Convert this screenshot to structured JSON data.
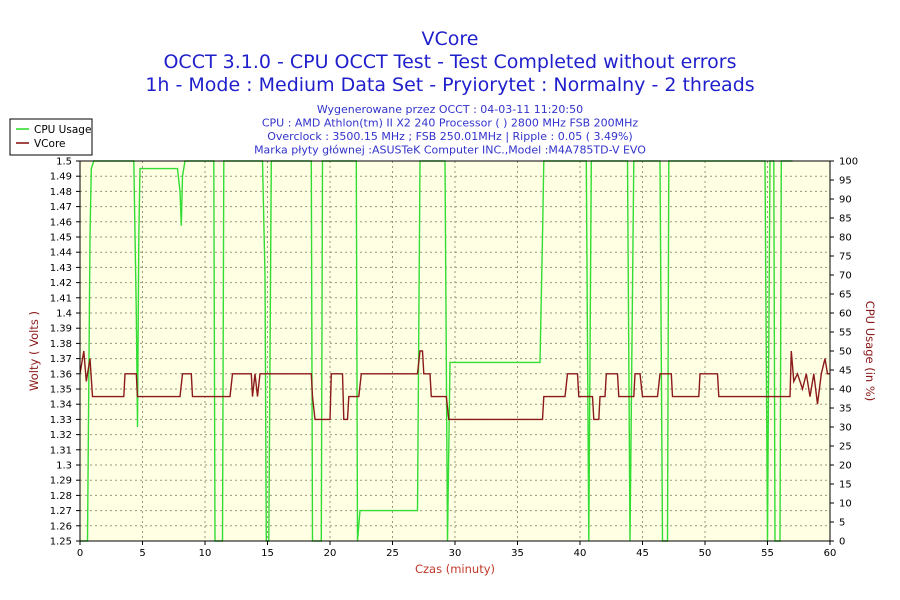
{
  "chart_data": {
    "type": "line",
    "title_lines": [
      "VCore",
      "OCCT 3.1.0 - CPU OCCT Test - Test Completed without errors",
      "1h - Mode : Medium Data Set - Pryiorytet : Normalny - 2 threads"
    ],
    "info_lines": [
      "Wygenerowane przez OCCT : 04-03-11 11:20:50",
      "CPU : AMD Athlon(tm) II X2 240 Processor (  ) 2800 MHz FSB 200MHz",
      "Overclock : 3500.15 MHz ; FSB 250.01MHz | Ripple : 0.05 ( 3.49%)",
      "Marka płyty głównej :ASUSTeK Computer INC.,Model :M4A785TD-V EVO"
    ],
    "xlabel": "Czas (minuty)",
    "ylabel_left": "Wolty ( Volts )",
    "ylabel_right": "CPU Usage (in %)",
    "xlim": [
      0,
      60
    ],
    "ylim_left": [
      1.25,
      1.5
    ],
    "ylim_right": [
      0,
      100
    ],
    "x_ticks": [
      "0",
      "5",
      "10",
      "15",
      "20",
      "25",
      "30",
      "35",
      "40",
      "45",
      "50",
      "55",
      "60"
    ],
    "y_left_ticks": [
      "1.25",
      "1.26",
      "1.27",
      "1.28",
      "1.29",
      "1.3",
      "1.31",
      "1.32",
      "1.33",
      "1.34",
      "1.35",
      "1.36",
      "1.37",
      "1.38",
      "1.39",
      "1.4",
      "1.41",
      "1.42",
      "1.43",
      "1.44",
      "1.45",
      "1.46",
      "1.47",
      "1.48",
      "1.49",
      "1.5"
    ],
    "y_right_ticks": [
      "0",
      "5",
      "10",
      "15",
      "20",
      "25",
      "30",
      "35",
      "40",
      "45",
      "50",
      "55",
      "60",
      "65",
      "70",
      "75",
      "80",
      "85",
      "90",
      "95",
      "100"
    ],
    "grid": true,
    "legend_position": "top-left",
    "colors": {
      "background": "#ffffff",
      "plot_background": "#ffffe4",
      "grid": "#9a9a7a",
      "cpu_usage": "#33dd33",
      "vcore": "#8b1a1a"
    },
    "series": [
      {
        "name": "CPU Usage",
        "axis": "right",
        "points": [
          [
            0,
            0
          ],
          [
            0.6,
            0
          ],
          [
            0.8,
            80
          ],
          [
            0.9,
            98
          ],
          [
            1.1,
            100
          ],
          [
            4.3,
            100
          ],
          [
            4.5,
            60
          ],
          [
            4.6,
            30
          ],
          [
            4.7,
            80
          ],
          [
            4.8,
            98
          ],
          [
            7.8,
            98
          ],
          [
            8.0,
            92
          ],
          [
            8.1,
            83
          ],
          [
            8.2,
            96
          ],
          [
            8.4,
            100
          ],
          [
            10.7,
            100
          ],
          [
            10.8,
            0
          ],
          [
            11.4,
            0
          ],
          [
            11.5,
            100
          ],
          [
            14.6,
            100
          ],
          [
            14.8,
            70
          ],
          [
            14.9,
            0
          ],
          [
            15.1,
            0
          ],
          [
            15.3,
            100
          ],
          [
            18.5,
            100
          ],
          [
            18.6,
            0
          ],
          [
            19.3,
            0
          ],
          [
            19.4,
            100
          ],
          [
            22.1,
            100
          ],
          [
            22.2,
            0
          ],
          [
            22.4,
            8
          ],
          [
            27.0,
            8
          ],
          [
            27.2,
            100
          ],
          [
            29.2,
            100
          ],
          [
            29.4,
            0
          ],
          [
            29.6,
            47
          ],
          [
            36.8,
            47
          ],
          [
            37.0,
            80
          ],
          [
            37.1,
            100
          ],
          [
            40.5,
            100
          ],
          [
            40.7,
            0
          ],
          [
            40.9,
            100
          ],
          [
            43.8,
            100
          ],
          [
            44.0,
            0
          ],
          [
            44.3,
            100
          ],
          [
            46.4,
            100
          ],
          [
            46.6,
            0
          ],
          [
            47.0,
            0
          ],
          [
            47.1,
            100
          ],
          [
            54.8,
            100
          ],
          [
            55.0,
            0
          ],
          [
            55.2,
            100
          ],
          [
            55.5,
            100
          ],
          [
            55.6,
            0
          ],
          [
            56.0,
            0
          ],
          [
            56.1,
            100
          ],
          [
            57.0,
            100
          ]
        ]
      },
      {
        "name": "VCore",
        "axis": "left",
        "points": [
          [
            0,
            1.36
          ],
          [
            0.3,
            1.375
          ],
          [
            0.5,
            1.355
          ],
          [
            0.8,
            1.37
          ],
          [
            1.0,
            1.345
          ],
          [
            3.5,
            1.345
          ],
          [
            3.6,
            1.36
          ],
          [
            4.5,
            1.36
          ],
          [
            4.6,
            1.345
          ],
          [
            8.0,
            1.345
          ],
          [
            8.2,
            1.36
          ],
          [
            8.9,
            1.36
          ],
          [
            9.0,
            1.345
          ],
          [
            12.0,
            1.345
          ],
          [
            12.2,
            1.36
          ],
          [
            13.7,
            1.36
          ],
          [
            13.8,
            1.345
          ],
          [
            14.0,
            1.36
          ],
          [
            14.2,
            1.345
          ],
          [
            14.4,
            1.36
          ],
          [
            18.5,
            1.36
          ],
          [
            18.6,
            1.345
          ],
          [
            18.8,
            1.33
          ],
          [
            20.0,
            1.33
          ],
          [
            20.1,
            1.36
          ],
          [
            21.0,
            1.36
          ],
          [
            21.1,
            1.33
          ],
          [
            21.4,
            1.33
          ],
          [
            21.5,
            1.345
          ],
          [
            22.3,
            1.345
          ],
          [
            22.5,
            1.36
          ],
          [
            27.0,
            1.36
          ],
          [
            27.2,
            1.375
          ],
          [
            27.4,
            1.375
          ],
          [
            27.5,
            1.36
          ],
          [
            28.0,
            1.36
          ],
          [
            28.1,
            1.345
          ],
          [
            29.3,
            1.345
          ],
          [
            29.5,
            1.33
          ],
          [
            37.0,
            1.33
          ],
          [
            37.1,
            1.345
          ],
          [
            38.8,
            1.345
          ],
          [
            39.0,
            1.36
          ],
          [
            39.8,
            1.36
          ],
          [
            39.9,
            1.345
          ],
          [
            41.0,
            1.345
          ],
          [
            41.1,
            1.33
          ],
          [
            41.5,
            1.33
          ],
          [
            41.6,
            1.345
          ],
          [
            42.0,
            1.345
          ],
          [
            42.1,
            1.36
          ],
          [
            43.0,
            1.36
          ],
          [
            43.1,
            1.345
          ],
          [
            44.3,
            1.345
          ],
          [
            44.4,
            1.36
          ],
          [
            44.8,
            1.36
          ],
          [
            45.0,
            1.345
          ],
          [
            46.2,
            1.345
          ],
          [
            46.4,
            1.36
          ],
          [
            47.3,
            1.36
          ],
          [
            47.4,
            1.345
          ],
          [
            49.5,
            1.345
          ],
          [
            49.6,
            1.36
          ],
          [
            51.0,
            1.36
          ],
          [
            51.1,
            1.345
          ],
          [
            56.8,
            1.345
          ],
          [
            56.9,
            1.375
          ],
          [
            57.1,
            1.355
          ],
          [
            57.4,
            1.36
          ],
          [
            57.8,
            1.35
          ],
          [
            58.1,
            1.36
          ],
          [
            58.4,
            1.345
          ],
          [
            58.7,
            1.36
          ],
          [
            59.0,
            1.34
          ],
          [
            59.3,
            1.36
          ],
          [
            59.6,
            1.37
          ],
          [
            59.8,
            1.36
          ],
          [
            60,
            1.36
          ]
        ]
      }
    ]
  }
}
